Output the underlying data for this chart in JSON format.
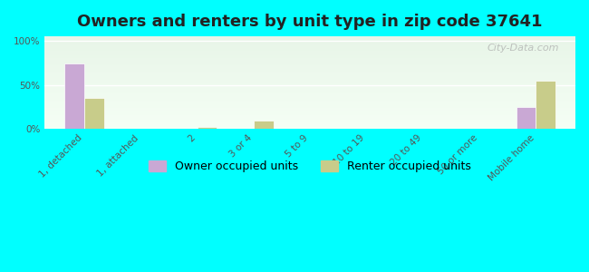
{
  "title": "Owners and renters by unit type in zip code 37641",
  "categories": [
    "1, detached",
    "1, attached",
    "2",
    "3 or 4",
    "5 to 9",
    "10 to 19",
    "20 to 49",
    "50 or more",
    "Mobile home"
  ],
  "owner_values": [
    74,
    0,
    0,
    0,
    0,
    0,
    0,
    0,
    25
  ],
  "renter_values": [
    35,
    0,
    2,
    10,
    0,
    0,
    0,
    0,
    55
  ],
  "owner_color": "#c9a8d4",
  "renter_color": "#c8cc8a",
  "background_color": "#00ffff",
  "plot_bg_gradient_top": "#e8f5e8",
  "plot_bg_gradient_bottom": "#f8fff8",
  "ylabel_ticks": [
    "0%",
    "50%",
    "100%"
  ],
  "ytick_vals": [
    0,
    50,
    100
  ],
  "ylim": [
    0,
    105
  ],
  "bar_width": 0.35,
  "title_fontsize": 13,
  "tick_fontsize": 7.5,
  "legend_fontsize": 9,
  "watermark": "City-Data.com"
}
